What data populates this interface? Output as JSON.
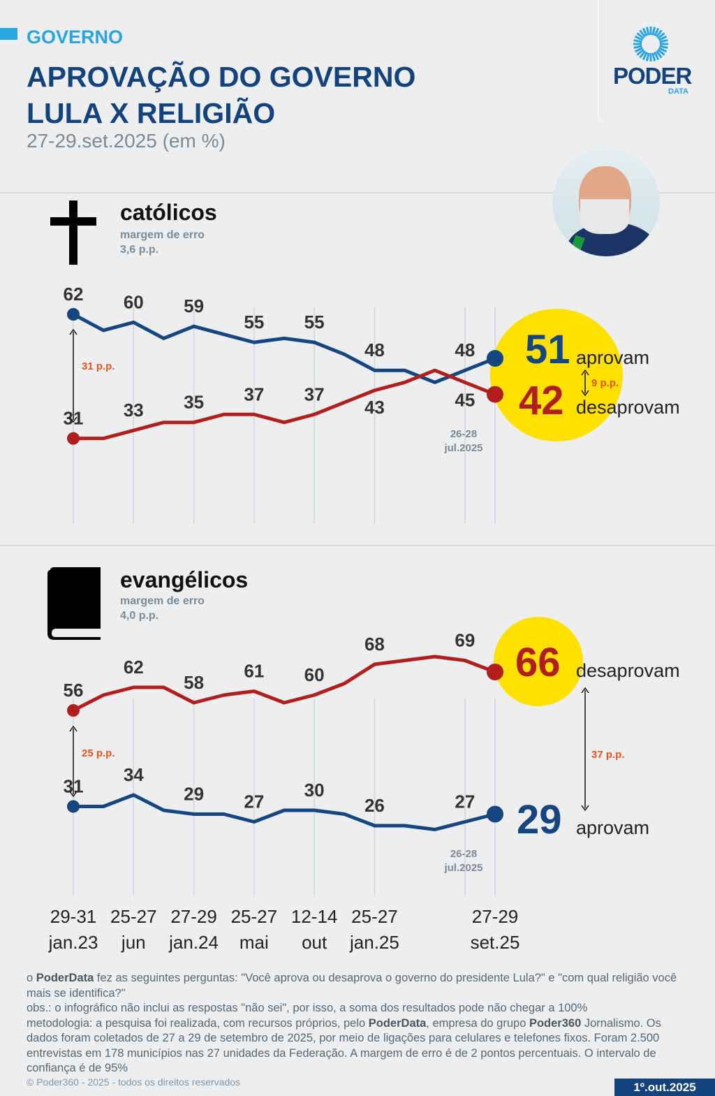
{
  "header": {
    "section": "GOVERNO",
    "title_line1": "APROVAÇÃO DO GOVERNO",
    "title_line2": "LULA X RELIGIÃO",
    "subtitle": "27-29.set.2025 (em %)",
    "logo": "PODER",
    "logo_sub": "DATA"
  },
  "colors": {
    "approve": "#16467f",
    "disapprove": "#b01e1e",
    "highlight": "#ffe000",
    "accent": "#2aa4e0",
    "diff": "#e8541b"
  },
  "chart_data": [
    {
      "type": "line",
      "title": "católicos",
      "moe_label": "margem de erro",
      "moe_value": "3,6 p.p.",
      "icon": "cross-icon",
      "x_count": 15,
      "series": [
        {
          "name": "aprovam",
          "color": "#16467f",
          "values": [
            62,
            58,
            60,
            56,
            59,
            57,
            55,
            56,
            55,
            52,
            48,
            48,
            45,
            48,
            51
          ],
          "labels": {
            "0": "62",
            "2": "60",
            "4": "59",
            "6": "55",
            "8": "55",
            "10": "48",
            "13": "48"
          }
        },
        {
          "name": "desaprovam",
          "color": "#b01e1e",
          "values": [
            31,
            31,
            33,
            35,
            35,
            37,
            37,
            35,
            37,
            40,
            43,
            45,
            48,
            45,
            42
          ],
          "labels": {
            "0": "31",
            "2": "33",
            "4": "35",
            "6": "37",
            "8": "37",
            "10": "43",
            "13": "45"
          }
        }
      ],
      "final": {
        "approve": "51",
        "disapprove": "42",
        "approve_word": "aprovam",
        "disapprove_word": "desaprovam"
      },
      "gap_start": "31 p.p.",
      "gap_end": "9 p.p.",
      "prev_date": [
        "26-28",
        "jul.2025"
      ]
    },
    {
      "type": "line",
      "title": "evangélicos",
      "moe_label": "margem de erro",
      "moe_value": "4,0 p.p.",
      "icon": "book-icon",
      "x_count": 15,
      "series": [
        {
          "name": "desaprovam",
          "color": "#b01e1e",
          "values": [
            56,
            60,
            62,
            62,
            58,
            60,
            61,
            58,
            60,
            63,
            68,
            69,
            70,
            69,
            66
          ],
          "labels": {
            "0": "56",
            "2": "62",
            "4": "58",
            "6": "61",
            "8": "60",
            "10": "68",
            "13": "69"
          }
        },
        {
          "name": "aprovam",
          "color": "#16467f",
          "values": [
            31,
            31,
            34,
            30,
            29,
            29,
            27,
            30,
            30,
            29,
            26,
            26,
            25,
            27,
            29
          ],
          "labels": {
            "0": "31",
            "2": "34",
            "4": "29",
            "6": "27",
            "8": "30",
            "10": "26",
            "13": "27"
          }
        }
      ],
      "final": {
        "approve": "29",
        "disapprove": "66",
        "approve_word": "aprovam",
        "disapprove_word": "desaprovam"
      },
      "gap_start": "25 p.p.",
      "gap_end": "37 p.p.",
      "prev_date": [
        "26-28",
        "jul.2025"
      ]
    }
  ],
  "x_axis": [
    [
      "29-31",
      "jan.23"
    ],
    [
      "25-27",
      "jun"
    ],
    [
      "27-29",
      "jan.24"
    ],
    [
      "25-27",
      "mai"
    ],
    [
      "12-14",
      "out"
    ],
    [
      "25-27",
      "jan.25"
    ],
    [
      "27-29",
      "set.25"
    ]
  ],
  "footer": {
    "q_pre": "o ",
    "q_brand": "PoderData",
    "q_text": " fez as seguintes perguntas: \"Você aprova ou desaprova o governo do presidente Lula?\" e \"com qual religião você mais se identifica?\"",
    "obs": "obs.: o infográfico não inclui as respostas \"não sei\", por isso, a soma dos resultados pode não chegar a 100%",
    "m1": "metodologia: a pesquisa foi realizada, com recursos próprios, pelo ",
    "m_brand": "PoderData",
    "m2": ", empresa do grupo ",
    "m_group": "Poder360",
    "m3": " Jornalismo. Os dados foram coletados de 27 a 29 de setembro de 2025, por meio de ligações para celulares e telefones fixos. Foram 2.500 entrevistas em 178 municípios nas 27 unidades da Federação. A margem de erro é de 2 pontos percentuais. O intervalo de confiança é de 95%",
    "copyright": "© Poder360 - 2025 - todos os direitos reservados",
    "pub_date": "1º.out.2025"
  }
}
